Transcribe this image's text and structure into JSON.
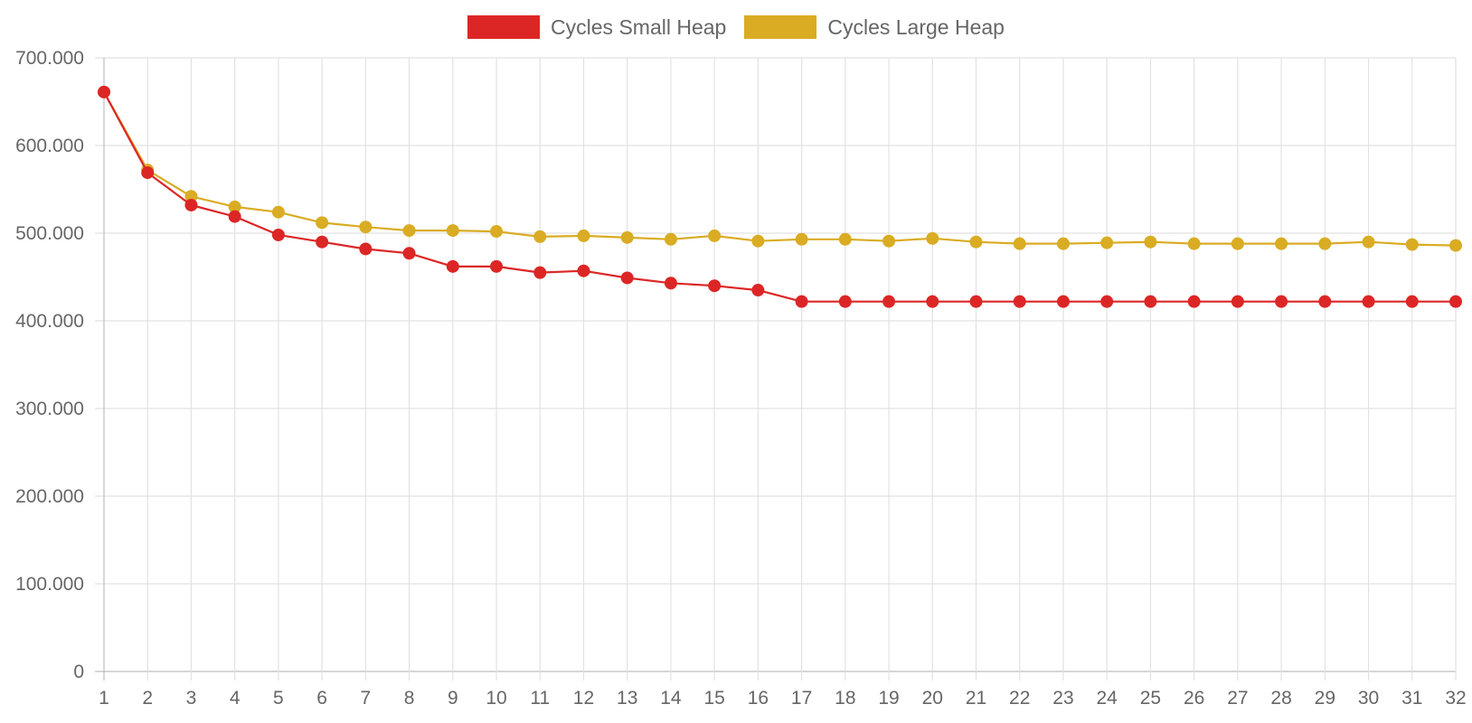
{
  "chart_data": {
    "type": "line",
    "title": "",
    "xlabel": "",
    "ylabel": "",
    "legend_position": "top-center",
    "grid": true,
    "ylim": [
      0,
      700000
    ],
    "y_ticks": [
      0,
      100000,
      200000,
      300000,
      400000,
      500000,
      600000,
      700000
    ],
    "y_tick_labels": [
      "0",
      "100.000",
      "200.000",
      "300.000",
      "400.000",
      "500.000",
      "600.000",
      "700.000"
    ],
    "categories": [
      "1",
      "2",
      "3",
      "4",
      "5",
      "6",
      "7",
      "8",
      "9",
      "10",
      "11",
      "12",
      "13",
      "14",
      "15",
      "16",
      "17",
      "18",
      "19",
      "20",
      "21",
      "22",
      "23",
      "24",
      "25",
      "26",
      "27",
      "28",
      "29",
      "30",
      "31",
      "32"
    ],
    "series": [
      {
        "name": "Cycles Small Heap",
        "color": "#dc2626",
        "values": [
          661000,
          569000,
          532000,
          519000,
          498000,
          490000,
          482000,
          477000,
          462000,
          462000,
          455000,
          457000,
          449000,
          443000,
          440000,
          435000,
          422000,
          422000,
          422000,
          422000,
          422000,
          422000,
          422000,
          422000,
          422000,
          422000,
          422000,
          422000,
          422000,
          422000,
          422000,
          422000
        ]
      },
      {
        "name": "Cycles Large Heap",
        "color": "#d9ac23",
        "values": [
          661000,
          572000,
          542000,
          530000,
          524000,
          512000,
          507000,
          503000,
          503000,
          502000,
          496000,
          497000,
          495000,
          493000,
          497000,
          491000,
          493000,
          493000,
          491000,
          494000,
          490000,
          488000,
          488000,
          489000,
          490000,
          488000,
          488000,
          488000,
          488000,
          490000,
          487000,
          486000
        ]
      }
    ]
  }
}
